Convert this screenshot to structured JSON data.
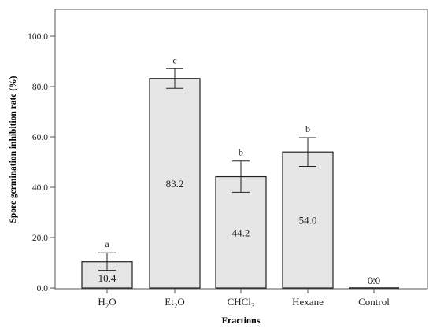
{
  "chart_data": {
    "type": "bar",
    "title": "",
    "xlabel": "Fractions",
    "ylabel": "Spore germination inhibition rate (%)",
    "ylim": [
      0,
      110
    ],
    "yticks": [
      0,
      20,
      40,
      60,
      80,
      100
    ],
    "ytick_labels": [
      "0.0",
      "20.0",
      "40.0",
      "60.0",
      "80.0",
      "100.0"
    ],
    "grid": false,
    "categories": [
      "H2O",
      "Et2O",
      "CHCl3",
      "Hexane",
      "Control"
    ],
    "category_labels": [
      {
        "base": "H",
        "sub": "2",
        "tail": "O"
      },
      {
        "base": "Et",
        "sub": "2",
        "tail": "O"
      },
      {
        "base": "CHCl",
        "sub": "3",
        "tail": ""
      },
      {
        "base": "Hexane",
        "sub": "",
        "tail": ""
      },
      {
        "base": "Control",
        "sub": "",
        "tail": ""
      }
    ],
    "values": [
      10.4,
      83.2,
      44.2,
      54.0,
      0.0
    ],
    "value_labels": [
      "10.4",
      "83.2",
      "44.2",
      "54.0",
      "0.0"
    ],
    "error_low": [
      7.0,
      79.3,
      38.0,
      48.3,
      0.0
    ],
    "error_high": [
      14.0,
      87.1,
      50.4,
      59.7,
      0.0
    ],
    "significance": [
      "a",
      "c",
      "b",
      "b",
      "a"
    ],
    "bar_color": "#e6e6e6",
    "edge_color": "#222222"
  }
}
